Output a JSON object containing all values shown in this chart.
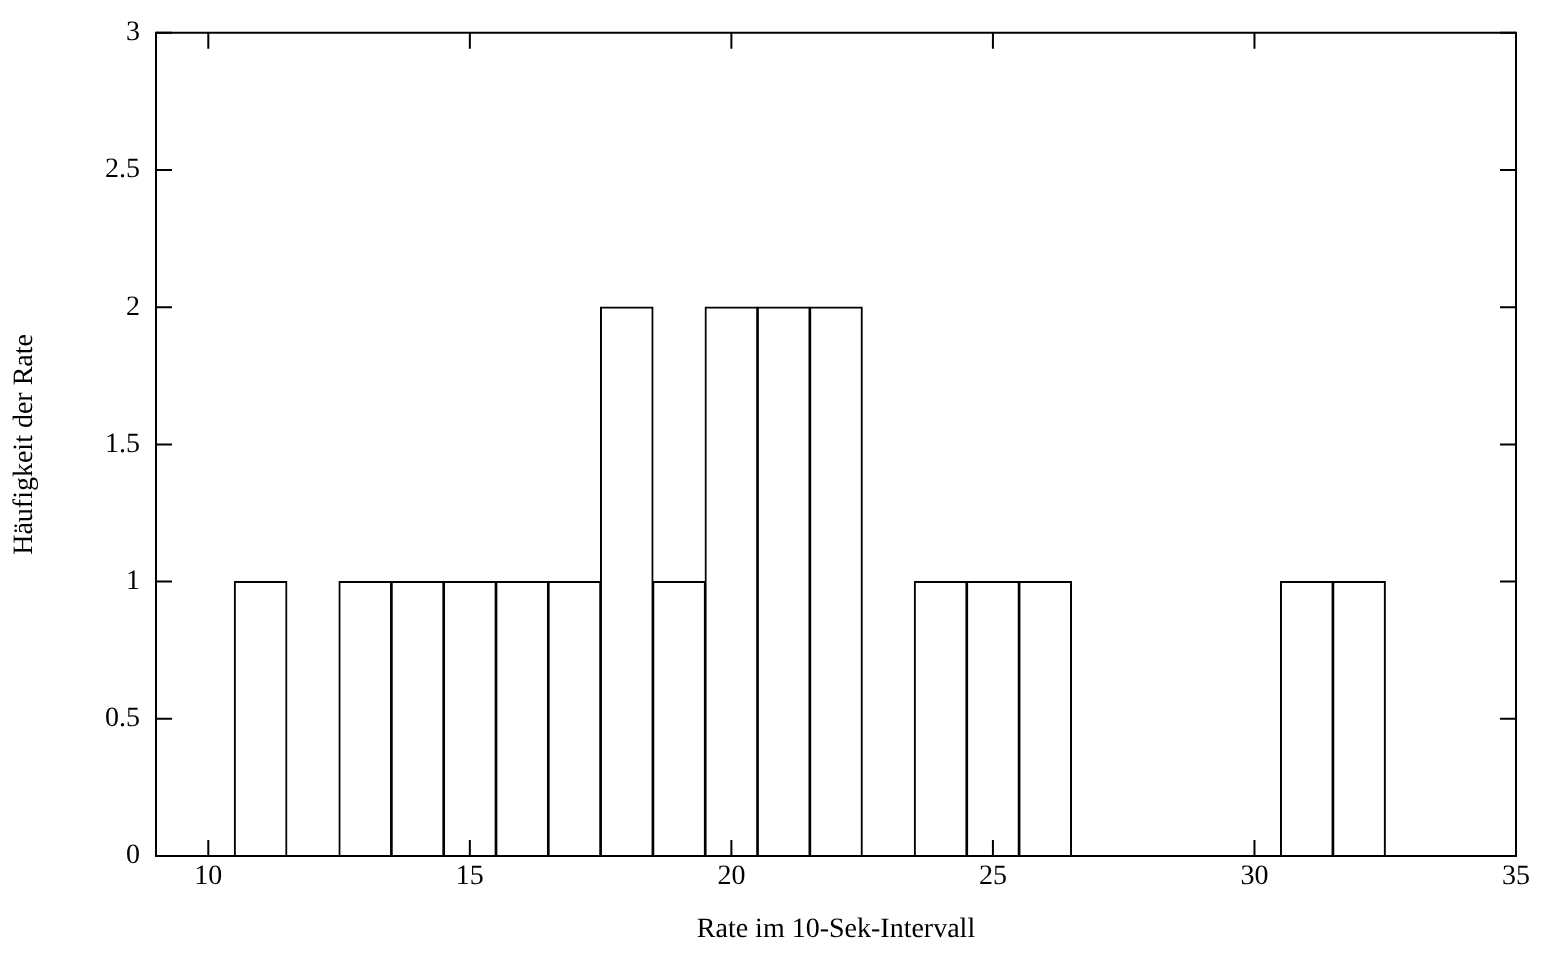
{
  "chart_data": {
    "type": "histogram",
    "xlabel": "Rate im 10-Sek-Intervall",
    "ylabel": "Häufigkeit der Rate",
    "bins": [
      10.5,
      11.5,
      12.5,
      13.5,
      14.5,
      15.5,
      16.5,
      17.5,
      18.5,
      19.5,
      20.5,
      21.5,
      22.5,
      23.5,
      24.5,
      25.5,
      26.5,
      27.5,
      28.5,
      29.5,
      30.5,
      31.5,
      32.5
    ],
    "values": [
      1,
      0,
      1,
      1,
      1,
      1,
      1,
      2,
      1,
      2,
      2,
      2,
      0,
      1,
      1,
      1,
      0,
      0,
      0,
      0,
      1,
      1
    ],
    "color": "#ffffff",
    "xlim": [
      9,
      35
    ],
    "xticks": [
      10,
      15,
      20,
      25,
      30,
      35
    ],
    "ylim": [
      0,
      3
    ],
    "yticks": [
      0,
      0.5,
      1,
      1.5,
      2,
      2.5,
      3
    ],
    "grid": false,
    "legend": false
  }
}
